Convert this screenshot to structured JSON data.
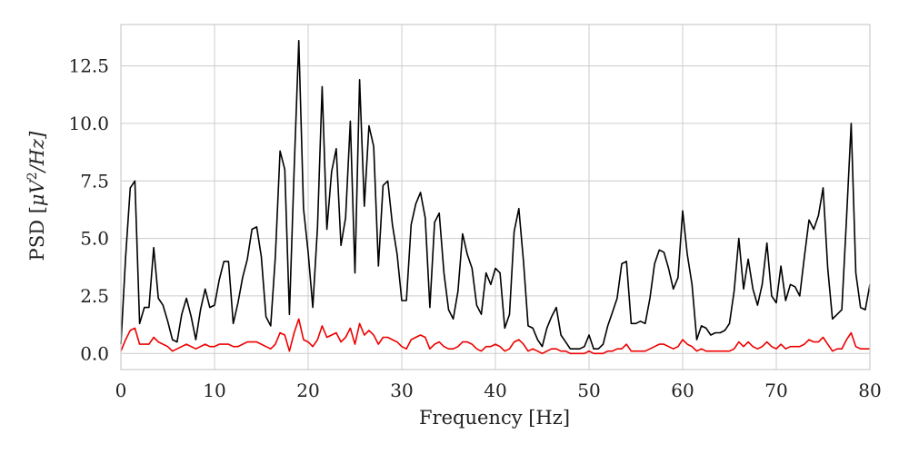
{
  "chart_data": {
    "type": "line",
    "title": "",
    "xlabel": "Frequency [Hz]",
    "ylabel_prefix": "PSD [",
    "ylabel_math": "μV",
    "ylabel_exp": "2",
    "ylabel_suffix": "/Hz]",
    "xlim": [
      0,
      80
    ],
    "ylim": [
      -0.7,
      14.3
    ],
    "xticks": [
      0,
      10,
      20,
      30,
      40,
      50,
      60,
      70,
      80
    ],
    "xtick_labels": [
      "0",
      "10",
      "20",
      "30",
      "40",
      "50",
      "60",
      "70",
      "80"
    ],
    "yticks": [
      0.0,
      2.5,
      5.0,
      7.5,
      10.0,
      12.5
    ],
    "ytick_labels": [
      "0.0",
      "2.5",
      "5.0",
      "7.5",
      "10.0",
      "12.5"
    ],
    "grid": true,
    "legend": "none",
    "x": [
      0,
      0.5,
      1,
      1.5,
      2,
      2.5,
      3,
      3.5,
      4,
      4.5,
      5,
      5.5,
      6,
      6.5,
      7,
      7.5,
      8,
      8.5,
      9,
      9.5,
      10,
      10.5,
      11,
      11.5,
      12,
      12.5,
      13,
      13.5,
      14,
      14.5,
      15,
      15.5,
      16,
      16.5,
      17,
      17.5,
      18,
      18.5,
      19,
      19.5,
      20,
      20.5,
      21,
      21.5,
      22,
      22.5,
      23,
      23.5,
      24,
      24.5,
      25,
      25.5,
      26,
      26.5,
      27,
      27.5,
      28,
      28.5,
      29,
      29.5,
      30,
      30.5,
      31,
      31.5,
      32,
      32.5,
      33,
      33.5,
      34,
      34.5,
      35,
      35.5,
      36,
      36.5,
      37,
      37.5,
      38,
      38.5,
      39,
      39.5,
      40,
      40.5,
      41,
      41.5,
      42,
      42.5,
      43,
      43.5,
      44,
      44.5,
      45,
      45.5,
      46,
      46.5,
      47,
      47.5,
      48,
      48.5,
      49,
      49.5,
      50,
      50.5,
      51,
      51.5,
      52,
      52.5,
      53,
      53.5,
      54,
      54.5,
      55,
      55.5,
      56,
      56.5,
      57,
      57.5,
      58,
      58.5,
      59,
      59.5,
      60,
      60.5,
      61,
      61.5,
      62,
      62.5,
      63,
      63.5,
      64,
      64.5,
      65,
      65.5,
      66,
      66.5,
      67,
      67.5,
      68,
      68.5,
      69,
      69.5,
      70,
      70.5,
      71,
      71.5,
      72,
      72.5,
      73,
      73.5,
      74,
      74.5,
      75,
      75.5,
      76,
      76.5,
      77,
      77.5,
      78,
      78.5,
      79,
      79.5,
      80
    ],
    "series": [
      {
        "color": "#000000",
        "values": [
          0.4,
          4.2,
          7.2,
          7.5,
          1.3,
          2.0,
          2.0,
          4.6,
          2.4,
          2.1,
          1.4,
          0.6,
          0.5,
          1.7,
          2.4,
          1.6,
          0.6,
          1.9,
          2.8,
          2.0,
          2.1,
          3.2,
          4.0,
          4.0,
          1.3,
          2.2,
          3.3,
          4.1,
          5.4,
          5.5,
          4.2,
          1.6,
          1.2,
          4.2,
          8.8,
          8.0,
          1.7,
          8.0,
          13.6,
          6.3,
          4.4,
          2.0,
          5.5,
          11.6,
          5.4,
          7.9,
          8.9,
          4.7,
          5.9,
          10.1,
          3.5,
          11.9,
          6.4,
          9.9,
          9.0,
          3.8,
          7.3,
          7.5,
          5.6,
          4.3,
          2.3,
          2.3,
          5.6,
          6.5,
          7.0,
          5.9,
          2.0,
          5.7,
          6.1,
          3.5,
          1.9,
          1.5,
          2.7,
          5.2,
          4.3,
          3.7,
          2.1,
          1.7,
          3.5,
          3.0,
          3.7,
          3.5,
          1.1,
          1.7,
          5.3,
          6.3,
          4.0,
          1.2,
          1.1,
          0.6,
          0.3,
          1.1,
          1.6,
          2.0,
          0.8,
          0.5,
          0.2,
          0.2,
          0.2,
          0.3,
          0.8,
          0.2,
          0.2,
          0.4,
          1.2,
          1.8,
          2.4,
          3.9,
          4.0,
          1.3,
          1.3,
          1.4,
          1.3,
          2.4,
          3.9,
          4.5,
          4.4,
          3.7,
          2.8,
          3.3,
          6.2,
          4.3,
          3.0,
          0.6,
          1.2,
          1.1,
          0.8,
          0.9,
          0.9,
          1.0,
          1.3,
          2.7,
          5.0,
          2.8,
          4.1,
          2.8,
          2.1,
          3.0,
          4.8,
          2.5,
          2.2,
          3.8,
          2.3,
          3.0,
          2.9,
          2.5,
          4.2,
          5.8,
          5.4,
          6.0,
          7.2,
          3.7,
          1.5,
          1.7,
          1.9,
          5.9,
          10.0,
          3.5,
          2.0,
          1.9,
          3.0
        ]
      },
      {
        "color": "#ee0000",
        "values": [
          0.1,
          0.6,
          1.0,
          1.1,
          0.4,
          0.4,
          0.4,
          0.7,
          0.5,
          0.4,
          0.3,
          0.1,
          0.2,
          0.3,
          0.4,
          0.3,
          0.2,
          0.3,
          0.4,
          0.3,
          0.3,
          0.4,
          0.4,
          0.4,
          0.3,
          0.3,
          0.4,
          0.5,
          0.5,
          0.5,
          0.4,
          0.3,
          0.2,
          0.4,
          0.9,
          0.8,
          0.1,
          0.9,
          1.5,
          0.6,
          0.5,
          0.3,
          0.6,
          1.2,
          0.7,
          0.8,
          0.9,
          0.5,
          0.7,
          1.1,
          0.4,
          1.3,
          0.8,
          1.0,
          0.8,
          0.4,
          0.7,
          0.7,
          0.6,
          0.5,
          0.3,
          0.2,
          0.6,
          0.7,
          0.8,
          0.7,
          0.2,
          0.4,
          0.5,
          0.3,
          0.2,
          0.2,
          0.3,
          0.5,
          0.5,
          0.4,
          0.2,
          0.1,
          0.3,
          0.3,
          0.4,
          0.3,
          0.1,
          0.2,
          0.5,
          0.6,
          0.4,
          0.1,
          0.2,
          0.1,
          0.0,
          0.1,
          0.2,
          0.2,
          0.1,
          0.1,
          0.0,
          0.0,
          0.0,
          0.0,
          0.1,
          0.0,
          0.0,
          0.0,
          0.1,
          0.1,
          0.2,
          0.2,
          0.4,
          0.1,
          0.1,
          0.1,
          0.1,
          0.2,
          0.3,
          0.4,
          0.4,
          0.3,
          0.2,
          0.3,
          0.6,
          0.4,
          0.3,
          0.1,
          0.2,
          0.1,
          0.1,
          0.1,
          0.1,
          0.1,
          0.1,
          0.2,
          0.5,
          0.3,
          0.5,
          0.3,
          0.2,
          0.3,
          0.5,
          0.3,
          0.2,
          0.4,
          0.2,
          0.3,
          0.3,
          0.3,
          0.4,
          0.6,
          0.5,
          0.5,
          0.7,
          0.4,
          0.1,
          0.2,
          0.2,
          0.6,
          0.9,
          0.3,
          0.2,
          0.2,
          0.2
        ]
      }
    ]
  }
}
